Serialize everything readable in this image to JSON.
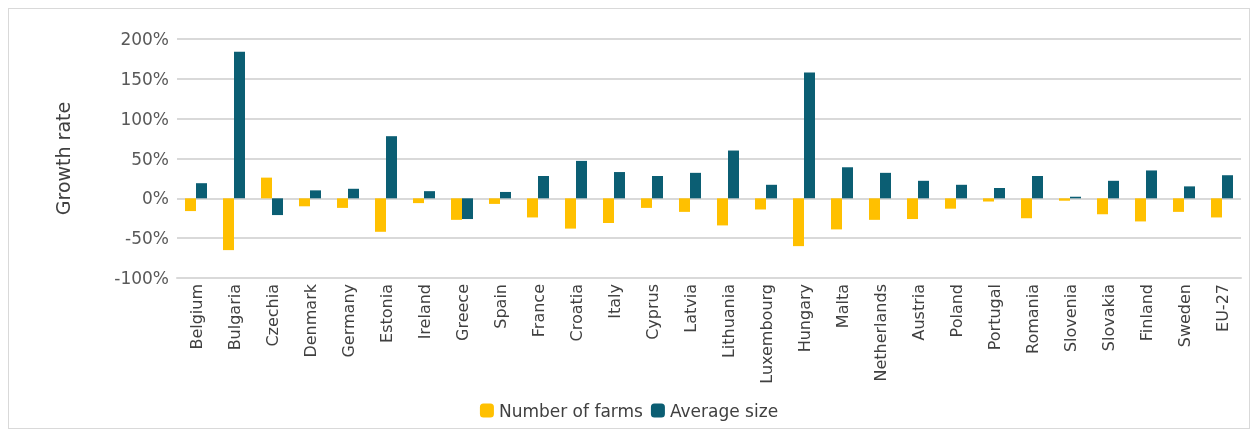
{
  "chart_data": {
    "type": "bar",
    "ylabel": "Growth rate",
    "categories": [
      "Belgium",
      "Bulgaria",
      "Czechia",
      "Denmark",
      "Germany",
      "Estonia",
      "Ireland",
      "Greece",
      "Spain",
      "France",
      "Croatia",
      "Italy",
      "Cyprus",
      "Latvia",
      "Lithuania",
      "Luxembourg",
      "Hungary",
      "Malta",
      "Netherlands",
      "Austria",
      "Poland",
      "Portugal",
      "Romania",
      "Slovenia",
      "Slovakia",
      "Finland",
      "Sweden",
      "EU-27"
    ],
    "series": [
      {
        "name": "Number of farms",
        "color": "#ffc000",
        "values": [
          -16,
          -65,
          26,
          -10,
          -12,
          -42,
          -6,
          -27,
          -7,
          -24,
          -38,
          -31,
          -12,
          -17,
          -34,
          -14,
          -60,
          -39,
          -27,
          -26,
          -13,
          -4,
          -25,
          -3,
          -20,
          -29,
          -17,
          -24
        ]
      },
      {
        "name": "Average size",
        "color": "#0b5e73",
        "values": [
          19,
          184,
          -21,
          10,
          12,
          78,
          9,
          -26,
          8,
          28,
          47,
          33,
          28,
          32,
          60,
          17,
          158,
          39,
          32,
          22,
          17,
          13,
          28,
          2,
          22,
          35,
          15,
          29
        ]
      }
    ],
    "ylim": [
      -100,
      200
    ],
    "yticks": [
      {
        "value": -100,
        "label": "-100%"
      },
      {
        "value": -50,
        "label": "-50%"
      },
      {
        "value": 0,
        "label": "0%"
      },
      {
        "value": 50,
        "label": "50%"
      },
      {
        "value": 100,
        "label": "100%"
      },
      {
        "value": 150,
        "label": "150%"
      },
      {
        "value": 200,
        "label": "200%"
      }
    ],
    "grid": "y",
    "legend": "bottom"
  }
}
